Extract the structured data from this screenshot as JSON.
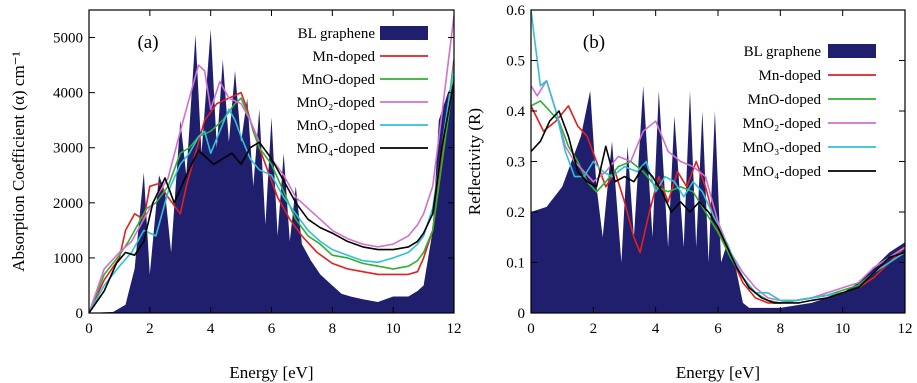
{
  "chart_data": [
    {
      "panel_label": "(a)",
      "type": "line",
      "xlabel": "Energy [eV]",
      "ylabel": "Absorption Coefficient (α) cm⁻¹",
      "xlim": [
        0,
        12
      ],
      "ylim": [
        0,
        5500
      ],
      "xticks": [
        "0",
        "2",
        "4",
        "6",
        "8",
        "10",
        "12"
      ],
      "yticks": [
        "0",
        "1000",
        "2000",
        "3000",
        "4000",
        "5000"
      ],
      "legend_position": "top-right",
      "series": [
        {
          "name": "BL graphene",
          "style": "filled",
          "color": "#1f1f6e",
          "x": [
            0,
            0.8,
            1.2,
            1.5,
            1.8,
            2.0,
            2.3,
            2.5,
            2.7,
            3.0,
            3.2,
            3.5,
            3.7,
            4.0,
            4.2,
            4.4,
            4.6,
            4.8,
            5.0,
            5.2,
            5.4,
            5.6,
            5.8,
            6.0,
            6.2,
            6.4,
            6.6,
            6.8,
            7.0,
            7.3,
            7.6,
            8.0,
            8.3,
            8.6,
            9.0,
            9.5,
            10.0,
            10.5,
            10.8,
            11.0,
            11.3,
            11.5,
            11.8,
            12.0
          ],
          "y": [
            0,
            20,
            150,
            800,
            2550,
            700,
            2500,
            2200,
            1100,
            3500,
            2500,
            5050,
            2900,
            5150,
            3000,
            4600,
            3100,
            4400,
            3100,
            3900,
            2300,
            3700,
            1600,
            3550,
            1400,
            2900,
            1300,
            2300,
            1250,
            950,
            700,
            500,
            350,
            300,
            250,
            200,
            300,
            300,
            400,
            500,
            1500,
            3500,
            4000,
            4200
          ]
        },
        {
          "name": "Mn-doped",
          "color": "#e02020",
          "x": [
            0,
            0.5,
            1.0,
            1.2,
            1.5,
            1.8,
            2.0,
            2.3,
            2.6,
            3.0,
            3.2,
            3.5,
            3.8,
            4.2,
            4.6,
            5.0,
            5.2,
            5.4,
            5.8,
            6.2,
            6.6,
            7.0,
            7.5,
            8.0,
            8.5,
            9.0,
            9.5,
            10.0,
            10.5,
            10.8,
            11.0,
            11.3,
            11.6,
            12.0
          ],
          "y": [
            0,
            600,
            1000,
            1500,
            1800,
            1700,
            2300,
            2350,
            2100,
            1800,
            2300,
            2900,
            3500,
            3800,
            3900,
            4000,
            3700,
            3300,
            2700,
            2100,
            1700,
            1400,
            1100,
            900,
            800,
            750,
            700,
            700,
            700,
            750,
            1000,
            1500,
            2800,
            4600
          ]
        },
        {
          "name": "MnO-doped",
          "color": "#30b030",
          "x": [
            0,
            0.5,
            1.0,
            1.3,
            1.6,
            1.9,
            2.2,
            2.6,
            3.0,
            3.3,
            3.6,
            4.0,
            4.4,
            4.8,
            5.0,
            5.3,
            5.6,
            6.0,
            6.4,
            6.8,
            7.2,
            7.6,
            8.0,
            8.5,
            9.0,
            9.5,
            10.0,
            10.5,
            10.8,
            11.0,
            11.3,
            11.6,
            12.0
          ],
          "y": [
            0,
            700,
            1050,
            1300,
            1600,
            1900,
            2000,
            2300,
            2900,
            3000,
            3200,
            3300,
            3500,
            3800,
            3900,
            3500,
            3000,
            2700,
            2200,
            1700,
            1400,
            1250,
            1050,
            1000,
            900,
            850,
            800,
            850,
            950,
            1100,
            1500,
            2700,
            4300
          ]
        },
        {
          "name": "MnO₂-doped",
          "color": "#d070d0",
          "x": [
            0,
            0.5,
            1.0,
            1.4,
            1.8,
            2.2,
            2.6,
            3.0,
            3.3,
            3.6,
            3.8,
            4.0,
            4.3,
            4.6,
            5.0,
            5.3,
            5.6,
            6.0,
            6.4,
            6.8,
            7.2,
            7.6,
            8.0,
            8.5,
            9.0,
            9.5,
            10.0,
            10.5,
            10.8,
            11.0,
            11.3,
            11.6,
            12.0
          ],
          "y": [
            0,
            800,
            1100,
            1300,
            1700,
            2100,
            2450,
            3300,
            3900,
            4500,
            4400,
            3700,
            4200,
            3900,
            3800,
            3500,
            3100,
            2800,
            2500,
            2100,
            1900,
            1700,
            1500,
            1350,
            1250,
            1200,
            1250,
            1400,
            1600,
            1800,
            2300,
            3600,
            5400
          ]
        },
        {
          "name": "MnO₃-doped",
          "color": "#30c0d8",
          "x": [
            0,
            0.5,
            1.0,
            1.4,
            1.8,
            2.2,
            2.6,
            3.0,
            3.3,
            3.6,
            3.8,
            4.0,
            4.3,
            4.6,
            4.8,
            5.0,
            5.3,
            5.6,
            6.0,
            6.4,
            6.8,
            7.2,
            7.6,
            8.0,
            8.5,
            9.0,
            9.5,
            10.0,
            10.5,
            10.8,
            11.0,
            11.3,
            11.6,
            12.0
          ],
          "y": [
            0,
            500,
            850,
            1100,
            1500,
            1400,
            2200,
            2700,
            2900,
            3200,
            3300,
            2900,
            3300,
            3700,
            3500,
            3200,
            2800,
            2600,
            2500,
            2100,
            1800,
            1500,
            1300,
            1150,
            1050,
            950,
            920,
            1000,
            1100,
            1250,
            1400,
            1900,
            3000,
            4500
          ]
        },
        {
          "name": "MnO₄-doped",
          "color": "#000000",
          "x": [
            0,
            0.5,
            0.9,
            1.2,
            1.5,
            1.8,
            2.1,
            2.5,
            2.8,
            3.2,
            3.6,
            3.8,
            4.1,
            4.4,
            4.7,
            5.0,
            5.3,
            5.6,
            6.0,
            6.4,
            6.8,
            7.2,
            7.6,
            8.0,
            8.5,
            9.0,
            9.5,
            10.0,
            10.5,
            10.8,
            11.0,
            11.3,
            11.6,
            12.0
          ],
          "y": [
            0,
            400,
            900,
            1100,
            1050,
            1300,
            2000,
            2450,
            2000,
            2500,
            2950,
            2850,
            2700,
            2800,
            2900,
            2700,
            3000,
            3100,
            2800,
            2400,
            2000,
            1700,
            1550,
            1450,
            1300,
            1200,
            1150,
            1150,
            1200,
            1300,
            1450,
            1800,
            3000,
            4200
          ]
        }
      ]
    },
    {
      "panel_label": "(b)",
      "type": "line",
      "xlabel": "Energy [eV]",
      "ylabel": "Reflectivity (R)",
      "xlim": [
        0,
        12
      ],
      "ylim": [
        0,
        0.6
      ],
      "xticks": [
        "0",
        "2",
        "4",
        "6",
        "8",
        "10",
        "12"
      ],
      "yticks": [
        "0",
        "0.1",
        "0.2",
        "0.3",
        "0.4",
        "0.5",
        "0.6"
      ],
      "legend_position": "top-right",
      "series": [
        {
          "name": "BL graphene",
          "style": "filled",
          "color": "#1f1f6e",
          "x": [
            0,
            0.5,
            1.0,
            1.3,
            1.6,
            1.9,
            2.1,
            2.3,
            2.6,
            2.9,
            3.1,
            3.3,
            3.6,
            3.9,
            4.1,
            4.4,
            4.6,
            4.9,
            5.1,
            5.3,
            5.5,
            5.7,
            5.9,
            6.1,
            6.3,
            6.5,
            6.8,
            7.0,
            7.5,
            8.0,
            8.5,
            9.0,
            9.5,
            10.0,
            10.5,
            11.0,
            11.5,
            12.0
          ],
          "y": [
            0.2,
            0.21,
            0.25,
            0.3,
            0.35,
            0.44,
            0.25,
            0.15,
            0.34,
            0.1,
            0.33,
            0.15,
            0.45,
            0.15,
            0.44,
            0.13,
            0.39,
            0.13,
            0.44,
            0.13,
            0.4,
            0.1,
            0.4,
            0.1,
            0.14,
            0.11,
            0.02,
            0.01,
            0.01,
            0.01,
            0.015,
            0.02,
            0.03,
            0.04,
            0.06,
            0.09,
            0.12,
            0.14
          ]
        },
        {
          "name": "Mn-doped",
          "color": "#e02020",
          "x": [
            0,
            0.4,
            0.8,
            1.2,
            1.5,
            1.8,
            2.1,
            2.4,
            2.7,
            3.0,
            3.3,
            3.5,
            3.8,
            4.1,
            4.4,
            4.7,
            5.0,
            5.3,
            5.6,
            5.9,
            6.2,
            6.5,
            6.8,
            7.2,
            7.6,
            8.0,
            8.5,
            9.0,
            9.5,
            10.0,
            10.5,
            11.0,
            11.5,
            12.0
          ],
          "y": [
            0.41,
            0.36,
            0.38,
            0.41,
            0.37,
            0.35,
            0.3,
            0.25,
            0.28,
            0.22,
            0.15,
            0.12,
            0.2,
            0.27,
            0.22,
            0.28,
            0.25,
            0.3,
            0.25,
            0.18,
            0.14,
            0.1,
            0.06,
            0.03,
            0.02,
            0.02,
            0.025,
            0.03,
            0.035,
            0.04,
            0.05,
            0.07,
            0.1,
            0.13
          ]
        },
        {
          "name": "MnO-doped",
          "color": "#30b030",
          "x": [
            0,
            0.3,
            0.6,
            0.9,
            1.2,
            1.5,
            1.8,
            2.1,
            2.4,
            2.8,
            3.2,
            3.6,
            4.0,
            4.4,
            4.8,
            5.2,
            5.6,
            6.0,
            6.4,
            6.8,
            7.2,
            7.6,
            8.0,
            8.5,
            9.0,
            9.5,
            10.0,
            10.5,
            11.0,
            11.5,
            12.0
          ],
          "y": [
            0.41,
            0.42,
            0.4,
            0.38,
            0.33,
            0.3,
            0.26,
            0.24,
            0.26,
            0.29,
            0.3,
            0.28,
            0.25,
            0.24,
            0.25,
            0.24,
            0.2,
            0.16,
            0.11,
            0.07,
            0.04,
            0.025,
            0.02,
            0.025,
            0.03,
            0.035,
            0.045,
            0.055,
            0.08,
            0.11,
            0.13
          ]
        },
        {
          "name": "MnO₂-doped",
          "color": "#d070d0",
          "x": [
            0,
            0.2,
            0.5,
            0.8,
            1.1,
            1.4,
            1.7,
            2.0,
            2.4,
            2.8,
            3.2,
            3.6,
            4.0,
            4.4,
            4.8,
            5.2,
            5.6,
            6.0,
            6.4,
            6.8,
            7.2,
            7.6,
            8.0,
            8.5,
            9.0,
            9.5,
            10.0,
            10.5,
            11.0,
            11.5,
            12.0
          ],
          "y": [
            0.45,
            0.43,
            0.46,
            0.4,
            0.33,
            0.3,
            0.28,
            0.26,
            0.28,
            0.31,
            0.3,
            0.36,
            0.38,
            0.32,
            0.3,
            0.29,
            0.27,
            0.18,
            0.12,
            0.08,
            0.05,
            0.03,
            0.025,
            0.025,
            0.03,
            0.04,
            0.05,
            0.06,
            0.09,
            0.11,
            0.13
          ]
        },
        {
          "name": "MnO₃-doped",
          "color": "#30c0d8",
          "x": [
            0,
            0.1,
            0.3,
            0.5,
            0.8,
            1.1,
            1.4,
            1.7,
            2.0,
            2.3,
            2.6,
            3.0,
            3.4,
            3.7,
            4.0,
            4.3,
            4.6,
            4.9,
            5.2,
            5.5,
            5.8,
            6.1,
            6.4,
            6.8,
            7.2,
            7.6,
            8.0,
            8.5,
            9.0,
            9.5,
            10.0,
            10.5,
            11.0,
            11.5,
            12.0
          ],
          "y": [
            0.6,
            0.55,
            0.45,
            0.46,
            0.4,
            0.32,
            0.27,
            0.27,
            0.3,
            0.28,
            0.27,
            0.29,
            0.28,
            0.3,
            0.24,
            0.27,
            0.26,
            0.23,
            0.26,
            0.24,
            0.2,
            0.16,
            0.12,
            0.07,
            0.04,
            0.04,
            0.025,
            0.025,
            0.03,
            0.035,
            0.04,
            0.05,
            0.08,
            0.1,
            0.12
          ]
        },
        {
          "name": "MnO₄-doped",
          "color": "#000000",
          "x": [
            0,
            0.3,
            0.6,
            0.9,
            1.2,
            1.5,
            1.8,
            2.1,
            2.4,
            2.7,
            3.0,
            3.3,
            3.6,
            3.9,
            4.2,
            4.5,
            4.8,
            5.1,
            5.4,
            5.7,
            6.0,
            6.3,
            6.6,
            7.0,
            7.4,
            7.8,
            8.2,
            8.6,
            9.0,
            9.5,
            10.0,
            10.5,
            11.0,
            11.5,
            12.0
          ],
          "y": [
            0.32,
            0.34,
            0.38,
            0.4,
            0.35,
            0.28,
            0.26,
            0.25,
            0.33,
            0.26,
            0.27,
            0.26,
            0.29,
            0.27,
            0.24,
            0.2,
            0.22,
            0.2,
            0.22,
            0.2,
            0.17,
            0.13,
            0.09,
            0.05,
            0.03,
            0.02,
            0.02,
            0.02,
            0.025,
            0.03,
            0.04,
            0.05,
            0.08,
            0.11,
            0.12
          ]
        }
      ]
    }
  ]
}
